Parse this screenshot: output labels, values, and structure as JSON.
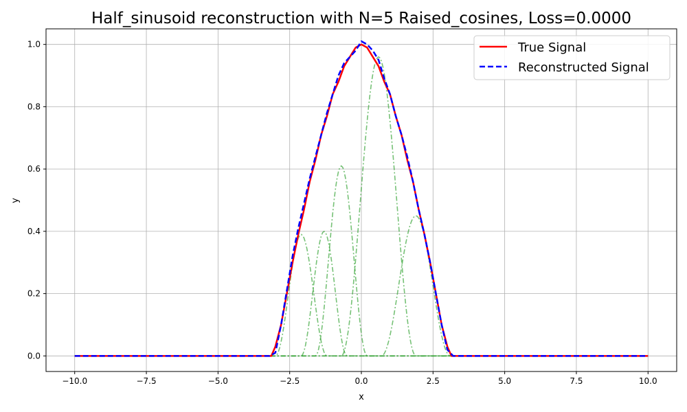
{
  "chart_data": {
    "type": "line",
    "title": "Half_sinusoid reconstruction with N=5 Raised_cosines, Loss=0.0000",
    "xlabel": "x",
    "ylabel": "y",
    "xlim": [
      -11,
      11
    ],
    "ylim": [
      -0.05,
      1.05
    ],
    "xticks": [
      -10.0,
      -7.5,
      -5.0,
      -2.5,
      0.0,
      2.5,
      5.0,
      7.5,
      10.0
    ],
    "xtick_labels": [
      "−10.0",
      "−7.5",
      "−5.0",
      "−2.5",
      "0.0",
      "2.5",
      "5.0",
      "7.5",
      "10.0"
    ],
    "yticks": [
      0.0,
      0.2,
      0.4,
      0.6,
      0.8,
      1.0
    ],
    "ytick_labels": [
      "0.0",
      "0.2",
      "0.4",
      "0.6",
      "0.8",
      "1.0"
    ],
    "grid": true,
    "legend_position": "top-right",
    "series": [
      {
        "name": "True Signal",
        "color": "#ff0000",
        "style": "solid",
        "x": [
          -10,
          -3.2,
          -3.1416,
          -3.0,
          -2.8,
          -2.6,
          -2.4,
          -2.2,
          -2.0,
          -1.8,
          -1.6,
          -1.4,
          -1.2,
          -1.0,
          -0.8,
          -0.6,
          -0.4,
          -0.2,
          0.0,
          0.2,
          0.4,
          0.6,
          0.8,
          1.0,
          1.2,
          1.4,
          1.6,
          1.8,
          2.0,
          2.2,
          2.4,
          2.6,
          2.8,
          3.0,
          3.1416,
          3.2,
          10
        ],
        "y": [
          0,
          0,
          0,
          0.03,
          0.1,
          0.2,
          0.3,
          0.39,
          0.47,
          0.56,
          0.63,
          0.71,
          0.77,
          0.84,
          0.88,
          0.93,
          0.96,
          0.99,
          1.0,
          0.99,
          0.96,
          0.93,
          0.88,
          0.84,
          0.77,
          0.71,
          0.63,
          0.56,
          0.47,
          0.39,
          0.3,
          0.2,
          0.1,
          0.03,
          0,
          0,
          0
        ]
      },
      {
        "name": "Reconstructed Signal",
        "color": "#0000ff",
        "style": "dashed",
        "x": [
          -10,
          -3.2,
          -3.0,
          -2.8,
          -2.6,
          -2.4,
          -2.2,
          -2.0,
          -1.8,
          -1.6,
          -1.4,
          -1.2,
          -1.0,
          -0.8,
          -0.6,
          -0.4,
          -0.2,
          0.0,
          0.2,
          0.4,
          0.6,
          0.8,
          1.0,
          1.2,
          1.4,
          1.6,
          1.8,
          2.0,
          2.2,
          2.4,
          2.6,
          2.8,
          3.0,
          3.2,
          10
        ],
        "y": [
          0,
          0,
          0.01,
          0.1,
          0.21,
          0.32,
          0.41,
          0.49,
          0.57,
          0.64,
          0.71,
          0.78,
          0.84,
          0.9,
          0.94,
          0.96,
          0.98,
          1.01,
          1.0,
          0.98,
          0.95,
          0.89,
          0.84,
          0.77,
          0.71,
          0.64,
          0.56,
          0.47,
          0.39,
          0.3,
          0.2,
          0.1,
          0.02,
          0,
          0
        ]
      }
    ],
    "basis_functions": [
      {
        "center": -2.1,
        "width": 0.9,
        "amplitude": 0.39
      },
      {
        "center": -1.3,
        "width": 0.8,
        "amplitude": 0.4
      },
      {
        "center": -0.7,
        "width": 0.9,
        "amplitude": 0.61
      },
      {
        "center": 0.6,
        "width": 1.3,
        "amplitude": 0.96
      },
      {
        "center": 1.9,
        "width": 1.2,
        "amplitude": 0.45
      }
    ],
    "basis_color": "#2ca02c",
    "basis_style": "dashdot"
  }
}
